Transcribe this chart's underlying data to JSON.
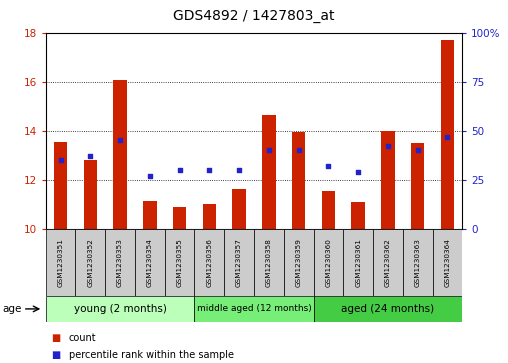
{
  "title": "GDS4892 / 1427803_at",
  "samples": [
    "GSM1230351",
    "GSM1230352",
    "GSM1230353",
    "GSM1230354",
    "GSM1230355",
    "GSM1230356",
    "GSM1230357",
    "GSM1230358",
    "GSM1230359",
    "GSM1230360",
    "GSM1230361",
    "GSM1230362",
    "GSM1230363",
    "GSM1230364"
  ],
  "count_values": [
    13.55,
    12.8,
    16.05,
    11.15,
    10.9,
    11.0,
    11.6,
    14.65,
    13.95,
    11.55,
    11.1,
    14.0,
    13.5,
    17.7
  ],
  "percentile_values": [
    35,
    37,
    45,
    27,
    30,
    30,
    30,
    40,
    40,
    32,
    29,
    42,
    40,
    47
  ],
  "ylim_left": [
    10,
    18
  ],
  "ylim_right": [
    0,
    100
  ],
  "yticks_left": [
    10,
    12,
    14,
    16,
    18
  ],
  "yticks_right": [
    0,
    25,
    50,
    75,
    100
  ],
  "bar_color": "#cc2200",
  "dot_color": "#2222cc",
  "bar_bottom": 10,
  "groups": [
    {
      "label": "young (2 months)",
      "start": 0,
      "end": 5
    },
    {
      "label": "middle aged (12 months)",
      "start": 5,
      "end": 9
    },
    {
      "label": "aged (24 months)",
      "start": 9,
      "end": 14
    }
  ],
  "group_colors": [
    "#bbffbb",
    "#77ee77",
    "#44cc44"
  ],
  "tick_bg_color": "#cccccc",
  "legend_count_color": "#cc2200",
  "legend_pct_color": "#2222cc",
  "legend_count_label": "count",
  "legend_pct_label": "percentile rank within the sample",
  "age_label": "age"
}
